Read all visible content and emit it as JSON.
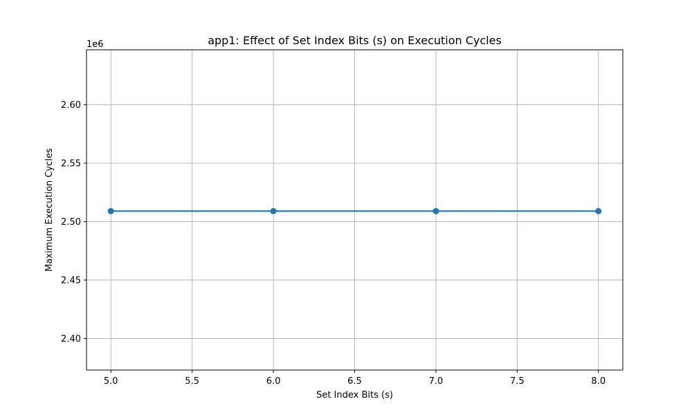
{
  "chart_data": {
    "type": "line",
    "title": "app1: Effect of Set Index Bits (s) on Execution Cycles",
    "xlabel": "Set Index Bits (s)",
    "ylabel": "Maximum Execution Cycles",
    "y_offset_label": "1e6",
    "xlim": [
      4.85,
      8.15
    ],
    "ylim": [
      2.373,
      2.647
    ],
    "x_ticks": [
      5.0,
      5.5,
      6.0,
      6.5,
      7.0,
      7.5,
      8.0
    ],
    "x_tick_labels": [
      "5.0",
      "5.5",
      "6.0",
      "6.5",
      "7.0",
      "7.5",
      "8.0"
    ],
    "y_ticks": [
      2.4,
      2.45,
      2.5,
      2.55,
      2.6
    ],
    "y_tick_labels": [
      "2.40",
      "2.45",
      "2.50",
      "2.55",
      "2.60"
    ],
    "grid": true,
    "series": [
      {
        "color": "#1f77b4",
        "marker": "circle",
        "x": [
          5,
          6,
          7,
          8
        ],
        "y": [
          2.509,
          2.509,
          2.509,
          2.509
        ]
      }
    ]
  }
}
